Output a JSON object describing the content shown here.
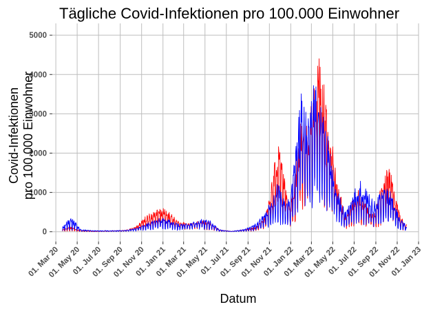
{
  "chart_data": {
    "type": "line",
    "title": "Tägliche Covid-Infektionen pro 100.000 Einwohner",
    "xlabel": "Datum",
    "ylabel": [
      "Covid-Infektionen",
      "pro 100.000 Einwohner"
    ],
    "x_ticks": [
      "01. Mar 20",
      "01. May 20",
      "01. Jul 20",
      "01. Sep 20",
      "01. Nov 20",
      "01. Jan 21",
      "01. Mar 21",
      "01. May 21",
      "01. Jul 21",
      "01. Sep 21",
      "01. Nov 21",
      "01. Jan 22",
      "01. Mar 22",
      "01. May 22",
      "01. Jul 22",
      "01. Sep 22",
      "01. Nov 22",
      "01. Jan 23"
    ],
    "y_ticks": [
      "0",
      "1000",
      "2000",
      "3000",
      "4000",
      "5000"
    ],
    "xlim": [
      "2020-02-20",
      "2023-01-01"
    ],
    "ylim": [
      -250,
      5300
    ],
    "grid": true,
    "legend": "none",
    "series": [
      {
        "color": "#ff0000",
        "envelope": [
          [
            "2020-03-20",
            60,
            20
          ],
          [
            "2020-04-10",
            140,
            40
          ],
          [
            "2020-04-25",
            90,
            30
          ],
          [
            "2020-05-10",
            30,
            10
          ],
          [
            "2020-06-15",
            15,
            5
          ],
          [
            "2020-08-01",
            25,
            8
          ],
          [
            "2020-09-15",
            40,
            15
          ],
          [
            "2020-10-15",
            120,
            50
          ],
          [
            "2020-11-10",
            380,
            120
          ],
          [
            "2020-12-10",
            560,
            200
          ],
          [
            "2021-01-01",
            600,
            250
          ],
          [
            "2021-01-20",
            500,
            200
          ],
          [
            "2021-02-15",
            260,
            110
          ],
          [
            "2021-03-20",
            220,
            120
          ],
          [
            "2021-04-20",
            300,
            150
          ],
          [
            "2021-05-15",
            250,
            100
          ],
          [
            "2021-06-10",
            60,
            20
          ],
          [
            "2021-07-15",
            10,
            5
          ],
          [
            "2021-08-20",
            60,
            20
          ],
          [
            "2021-09-25",
            120,
            40
          ],
          [
            "2021-10-20",
            420,
            150
          ],
          [
            "2021-11-10",
            1400,
            600
          ],
          [
            "2021-11-25",
            2400,
            1000
          ],
          [
            "2021-12-10",
            1600,
            700
          ],
          [
            "2021-12-31",
            700,
            300
          ],
          [
            "2022-01-15",
            1600,
            600
          ],
          [
            "2022-02-01",
            3100,
            1200
          ],
          [
            "2022-02-20",
            2600,
            1200
          ],
          [
            "2022-03-10",
            4000,
            1600
          ],
          [
            "2022-03-25",
            4600,
            1900
          ],
          [
            "2022-04-10",
            3600,
            1400
          ],
          [
            "2022-04-25",
            2600,
            1000
          ],
          [
            "2022-05-15",
            1300,
            500
          ],
          [
            "2022-06-05",
            420,
            150
          ],
          [
            "2022-06-25",
            800,
            300
          ],
          [
            "2022-07-15",
            1100,
            400
          ],
          [
            "2022-08-05",
            700,
            300
          ],
          [
            "2022-08-25",
            450,
            150
          ],
          [
            "2022-09-20",
            1300,
            450
          ],
          [
            "2022-10-10",
            1800,
            700
          ],
          [
            "2022-10-25",
            1000,
            400
          ],
          [
            "2022-11-10",
            400,
            120
          ],
          [
            "2022-11-28",
            200,
            60
          ]
        ]
      },
      {
        "color": "#0000ff",
        "envelope": [
          [
            "2020-03-20",
            120,
            40
          ],
          [
            "2020-04-10",
            380,
            100
          ],
          [
            "2020-04-25",
            260,
            80
          ],
          [
            "2020-05-10",
            60,
            20
          ],
          [
            "2020-06-15",
            30,
            10
          ],
          [
            "2020-08-01",
            30,
            10
          ],
          [
            "2020-09-15",
            40,
            15
          ],
          [
            "2020-10-15",
            90,
            40
          ],
          [
            "2020-11-10",
            180,
            80
          ],
          [
            "2020-12-10",
            320,
            130
          ],
          [
            "2021-01-01",
            360,
            150
          ],
          [
            "2021-01-20",
            300,
            120
          ],
          [
            "2021-02-15",
            200,
            80
          ],
          [
            "2021-03-20",
            220,
            110
          ],
          [
            "2021-04-20",
            320,
            160
          ],
          [
            "2021-05-15",
            300,
            130
          ],
          [
            "2021-06-10",
            60,
            20
          ],
          [
            "2021-07-15",
            10,
            5
          ],
          [
            "2021-08-20",
            60,
            20
          ],
          [
            "2021-09-25",
            220,
            70
          ],
          [
            "2021-10-20",
            500,
            200
          ],
          [
            "2021-11-10",
            900,
            350
          ],
          [
            "2021-11-25",
            1300,
            500
          ],
          [
            "2021-12-10",
            900,
            350
          ],
          [
            "2021-12-31",
            800,
            300
          ],
          [
            "2022-01-15",
            2300,
            800
          ],
          [
            "2022-02-01",
            3600,
            1400
          ],
          [
            "2022-02-20",
            3000,
            1300
          ],
          [
            "2022-03-10",
            3900,
            1600
          ],
          [
            "2022-03-25",
            3700,
            1500
          ],
          [
            "2022-04-10",
            2700,
            1000
          ],
          [
            "2022-04-25",
            2200,
            900
          ],
          [
            "2022-05-15",
            1100,
            400
          ],
          [
            "2022-06-05",
            500,
            180
          ],
          [
            "2022-06-25",
            900,
            350
          ],
          [
            "2022-07-15",
            1350,
            500
          ],
          [
            "2022-08-05",
            1100,
            400
          ],
          [
            "2022-08-25",
            800,
            300
          ],
          [
            "2022-09-20",
            1100,
            400
          ],
          [
            "2022-10-10",
            1100,
            450
          ],
          [
            "2022-10-25",
            700,
            300
          ],
          [
            "2022-11-10",
            350,
            120
          ],
          [
            "2022-11-28",
            150,
            50
          ]
        ]
      }
    ]
  }
}
